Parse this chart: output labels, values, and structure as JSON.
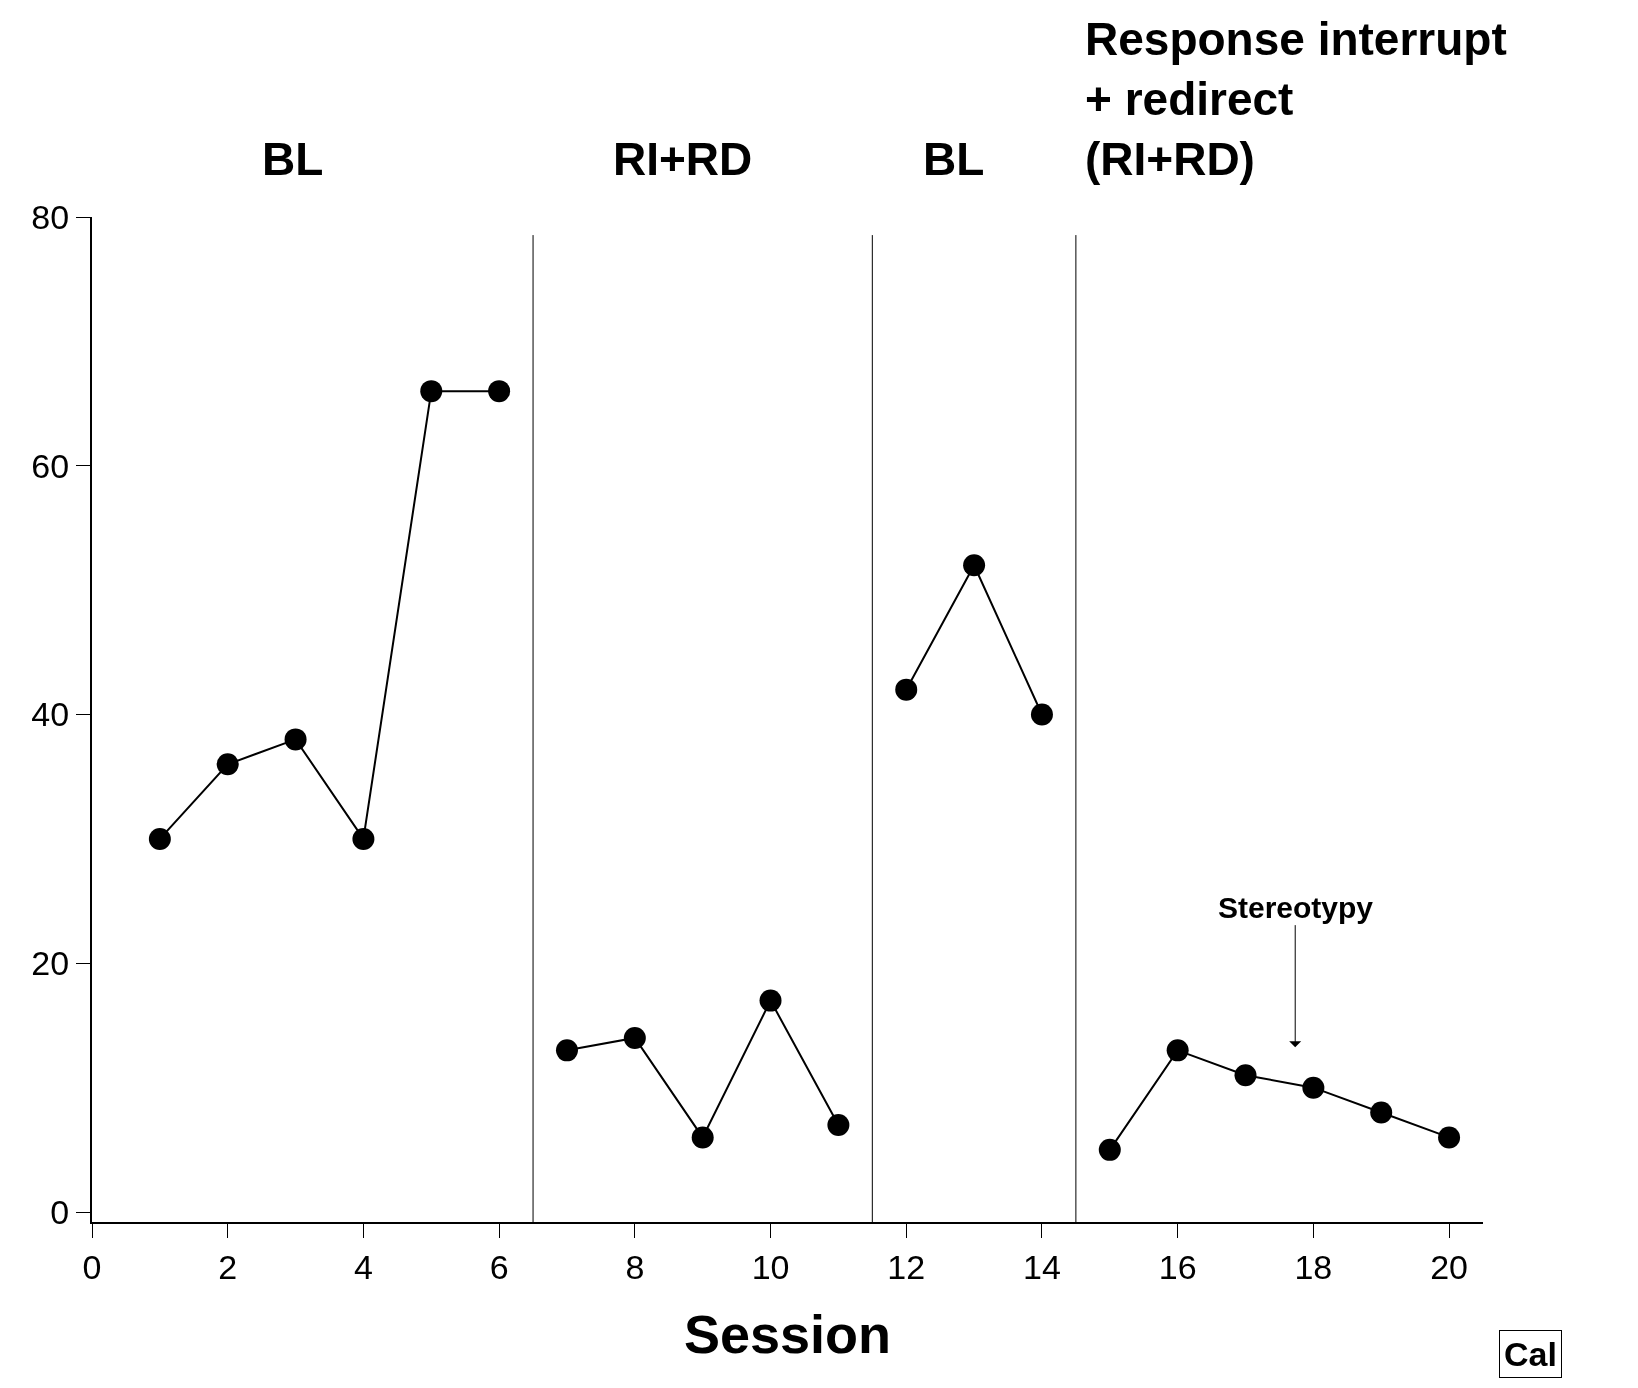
{
  "chart_data": {
    "type": "line",
    "xlabel": "Session",
    "series": [
      {
        "color": "#000000",
        "x": [
          1,
          2,
          3,
          4,
          5,
          6
        ],
        "values": [
          30,
          36,
          38,
          30,
          66,
          66
        ]
      },
      {
        "color": "#000000",
        "x": [
          7,
          8,
          9,
          10,
          11
        ],
        "values": [
          13,
          14,
          6,
          17,
          7
        ]
      },
      {
        "color": "#000000",
        "x": [
          12,
          13,
          14
        ],
        "values": [
          42,
          52,
          40
        ]
      },
      {
        "color": "#000000",
        "x": [
          15,
          16,
          17,
          18,
          19,
          20
        ],
        "values": [
          5,
          13,
          11,
          10,
          8,
          6
        ]
      }
    ],
    "marker": "circle",
    "line_style": "solid",
    "xlim": [
      0,
      20.5
    ],
    "xticks": [
      0,
      2,
      4,
      6,
      8,
      10,
      12,
      14,
      16,
      18,
      20
    ],
    "ylim": [
      -0.8,
      80
    ],
    "yticks": [
      0,
      20,
      40,
      60,
      80
    ],
    "ref_lines": [
      {
        "axis": "x",
        "value": 6.5,
        "color": "#000000"
      },
      {
        "axis": "x",
        "value": 11.5,
        "color": "#000000"
      },
      {
        "axis": "x",
        "value": 14.5,
        "color": "#000000"
      }
    ],
    "annotations": [
      "BL",
      "RI+RD",
      "BL",
      "Response interrupt\n+ redirect\n(RI+RD)",
      "Stereotypy",
      "Cal"
    ]
  }
}
